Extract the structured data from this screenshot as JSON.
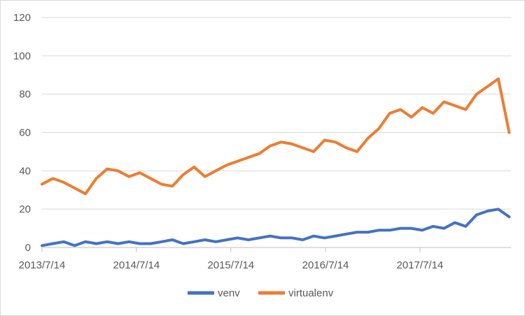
{
  "chart_data": {
    "type": "line",
    "title": "",
    "xlabel": "",
    "ylabel": "",
    "ylim": [
      0,
      120
    ],
    "yticks": [
      0,
      20,
      40,
      60,
      80,
      100,
      120
    ],
    "xlim": [
      "2013-07-14",
      "2018-07-01"
    ],
    "xtick_labels": [
      "2013/7/14",
      "2014/7/14",
      "2015/7/14",
      "2016/7/14",
      "2017/7/14"
    ],
    "xtick_dates": [
      "2013-07-14",
      "2014-07-14",
      "2015-07-14",
      "2016-07-14",
      "2017-07-14"
    ],
    "grid": "horizontal",
    "legend_position": "bottom",
    "x": [
      "2013-07-14",
      "2013-08-25",
      "2013-10-06",
      "2013-11-17",
      "2013-12-29",
      "2014-02-09",
      "2014-03-23",
      "2014-05-04",
      "2014-06-15",
      "2014-07-27",
      "2014-09-07",
      "2014-10-19",
      "2014-11-30",
      "2015-01-11",
      "2015-02-22",
      "2015-04-05",
      "2015-05-17",
      "2015-06-28",
      "2015-08-09",
      "2015-09-20",
      "2015-11-01",
      "2015-12-13",
      "2016-01-24",
      "2016-03-06",
      "2016-04-17",
      "2016-05-29",
      "2016-07-10",
      "2016-08-21",
      "2016-10-02",
      "2016-11-13",
      "2016-12-25",
      "2017-02-05",
      "2017-03-19",
      "2017-04-30",
      "2017-06-11",
      "2017-07-23",
      "2017-09-03",
      "2017-10-15",
      "2017-11-26",
      "2018-01-07",
      "2018-02-18",
      "2018-04-01",
      "2018-05-13",
      "2018-06-24"
    ],
    "series": [
      {
        "name": "venv",
        "color": "#4472c4",
        "values": [
          1,
          2,
          3,
          1,
          3,
          2,
          3,
          2,
          3,
          2,
          2,
          3,
          4,
          2,
          3,
          4,
          3,
          4,
          5,
          4,
          5,
          6,
          5,
          5,
          4,
          6,
          5,
          6,
          7,
          8,
          8,
          9,
          9,
          10,
          10,
          9,
          11,
          10,
          13,
          11,
          17,
          19,
          20,
          16
        ]
      },
      {
        "name": "virtualenv",
        "color": "#ed7d31",
        "values": [
          33,
          36,
          34,
          31,
          28,
          36,
          41,
          40,
          37,
          39,
          36,
          33,
          32,
          38,
          42,
          37,
          40,
          43,
          45,
          47,
          49,
          53,
          55,
          54,
          52,
          50,
          56,
          55,
          52,
          50,
          57,
          62,
          70,
          72,
          68,
          73,
          70,
          76,
          74,
          72,
          80,
          84,
          88,
          60
        ]
      }
    ]
  }
}
